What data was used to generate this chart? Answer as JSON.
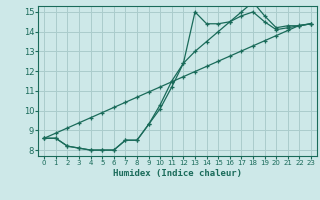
{
  "xlabel": "Humidex (Indice chaleur)",
  "background_color": "#cde8e8",
  "grid_color": "#aacccc",
  "line_color": "#1a6b5a",
  "xlim": [
    -0.5,
    23.5
  ],
  "ylim": [
    7.7,
    15.3
  ],
  "xticks": [
    0,
    1,
    2,
    3,
    4,
    5,
    6,
    7,
    8,
    9,
    10,
    11,
    12,
    13,
    14,
    15,
    16,
    17,
    18,
    19,
    20,
    21,
    22,
    23
  ],
  "yticks": [
    8,
    9,
    10,
    11,
    12,
    13,
    14,
    15
  ],
  "line1_x": [
    0,
    1,
    2,
    3,
    4,
    5,
    6,
    7,
    8,
    9,
    10,
    11,
    12,
    13,
    14,
    15,
    16,
    17,
    18,
    19,
    20,
    21,
    22,
    23
  ],
  "line1_y": [
    8.6,
    8.6,
    8.2,
    8.1,
    8.0,
    8.0,
    8.0,
    8.5,
    8.5,
    9.3,
    10.3,
    11.5,
    12.4,
    15.0,
    14.4,
    14.4,
    14.5,
    15.0,
    15.5,
    14.8,
    14.2,
    14.3,
    14.3,
    14.4
  ],
  "line2_x": [
    0,
    1,
    2,
    3,
    4,
    5,
    6,
    7,
    8,
    9,
    10,
    11,
    12,
    13,
    14,
    15,
    16,
    17,
    18,
    19,
    20,
    21,
    22,
    23
  ],
  "line2_y": [
    8.6,
    8.6,
    8.2,
    8.1,
    8.0,
    8.0,
    8.0,
    8.5,
    8.5,
    9.3,
    10.1,
    11.2,
    12.4,
    13.0,
    13.5,
    14.0,
    14.5,
    14.8,
    15.0,
    14.5,
    14.1,
    14.2,
    14.3,
    14.4
  ],
  "line3_x": [
    0,
    1,
    2,
    3,
    4,
    5,
    6,
    7,
    8,
    9,
    10,
    11,
    12,
    13,
    14,
    15,
    16,
    17,
    18,
    19,
    20,
    21,
    22,
    23
  ],
  "line3_y": [
    8.6,
    8.86,
    9.12,
    9.38,
    9.64,
    9.9,
    10.16,
    10.42,
    10.68,
    10.94,
    11.2,
    11.46,
    11.72,
    11.98,
    12.24,
    12.5,
    12.76,
    13.02,
    13.28,
    13.54,
    13.8,
    14.06,
    14.32,
    14.4
  ]
}
